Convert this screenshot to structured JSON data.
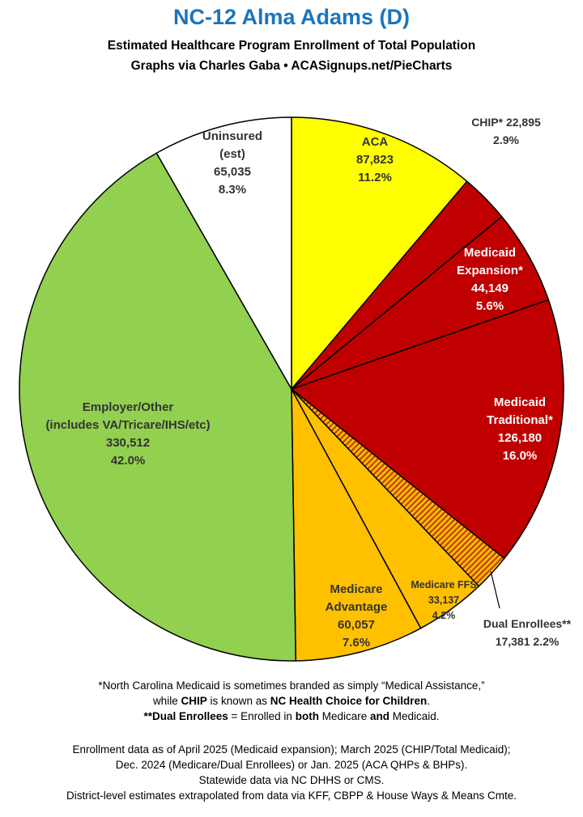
{
  "header": {
    "title": "NC-12 Alma Adams (D)",
    "subtitle1": "Estimated Healthcare Program Enrollment of Total Population",
    "subtitle2": "Graphs via Charles Gaba  •  ACASignups.net/PieCharts"
  },
  "chart_data": {
    "type": "pie",
    "title": "NC-12 Alma Adams (D)",
    "slices": [
      {
        "key": "aca",
        "label_lines": [
          "ACA"
        ],
        "value": 87823,
        "value_text": "87,823",
        "pct_text": "11.2%",
        "color": "#ffff00",
        "text_color": "#333333"
      },
      {
        "key": "chip",
        "label_lines": [
          "CHIP* 22,895"
        ],
        "value": 22895,
        "value_text": "",
        "pct_text": "2.9%",
        "color": "#c00000",
        "text_color": "#333333"
      },
      {
        "key": "medicaid_expansion",
        "label_lines": [
          "Medicaid",
          "Expansion*"
        ],
        "value": 44149,
        "value_text": "44,149",
        "pct_text": "5.6%",
        "color": "#c00000",
        "text_color": "#ffffff"
      },
      {
        "key": "medicaid_traditional",
        "label_lines": [
          "Medicaid",
          "Traditional*"
        ],
        "value": 126180,
        "value_text": "126,180",
        "pct_text": "16.0%",
        "color": "#c00000",
        "text_color": "#ffffff"
      },
      {
        "key": "dual_enrollees",
        "label_lines": [
          "Dual Enrollees**"
        ],
        "value": 17381,
        "value_text": "17,381 2.2%",
        "pct_text": "",
        "color": "#e07000",
        "text_color": "#333333",
        "pattern": "hatched"
      },
      {
        "key": "medicare_ffs",
        "label_lines": [
          "Medicare FFS"
        ],
        "value": 33137,
        "value_text": "33,137",
        "pct_text": "4.2%",
        "color": "#ffc000",
        "text_color": "#333333"
      },
      {
        "key": "medicare_advantage",
        "label_lines": [
          "Medicare",
          "Advantage"
        ],
        "value": 60057,
        "value_text": "60,057",
        "pct_text": "7.6%",
        "color": "#ffc000",
        "text_color": "#333333"
      },
      {
        "key": "employer_other",
        "label_lines": [
          "Employer/Other",
          "(includes VA/Tricare/IHS/etc)"
        ],
        "value": 330512,
        "value_text": "330,512",
        "pct_text": "42.0%",
        "color": "#92d050",
        "text_color": "#333333"
      },
      {
        "key": "uninsured",
        "label_lines": [
          "Uninsured",
          "(est)"
        ],
        "value": 65035,
        "value_text": "65,035",
        "pct_text": "8.3%",
        "color": "#ffffff",
        "text_color": "#333333"
      }
    ]
  },
  "footnotes": {
    "line1": "*North Carolina Medicaid is sometimes branded as simply “Medical Assistance,”",
    "line2_pre": "while ",
    "line2_b1": "CHIP",
    "line2_mid": " is known as ",
    "line2_b2": "NC Health Choice for Children",
    "line2_post": ".",
    "line3_b1": "**Dual Enrollees",
    "line3_mid1": " = Enrolled in ",
    "line3_b2": "both",
    "line3_mid2": " Medicare ",
    "line3_b3": "and",
    "line3_post": " Medicaid.",
    "line4": "Enrollment data as of April 2025 (Medicaid expansion); March 2025 (CHIP/Total Medicaid);",
    "line5": "Dec. 2024 (Medicare/Dual Enrollees) or Jan. 2025 (ACA QHPs & BHPs).",
    "line6": "Statewide data via NC DHHS or CMS.",
    "line7": "District-level estimates extrapolated from data via KFF, CBPP & House Ways & Means Cmte."
  }
}
